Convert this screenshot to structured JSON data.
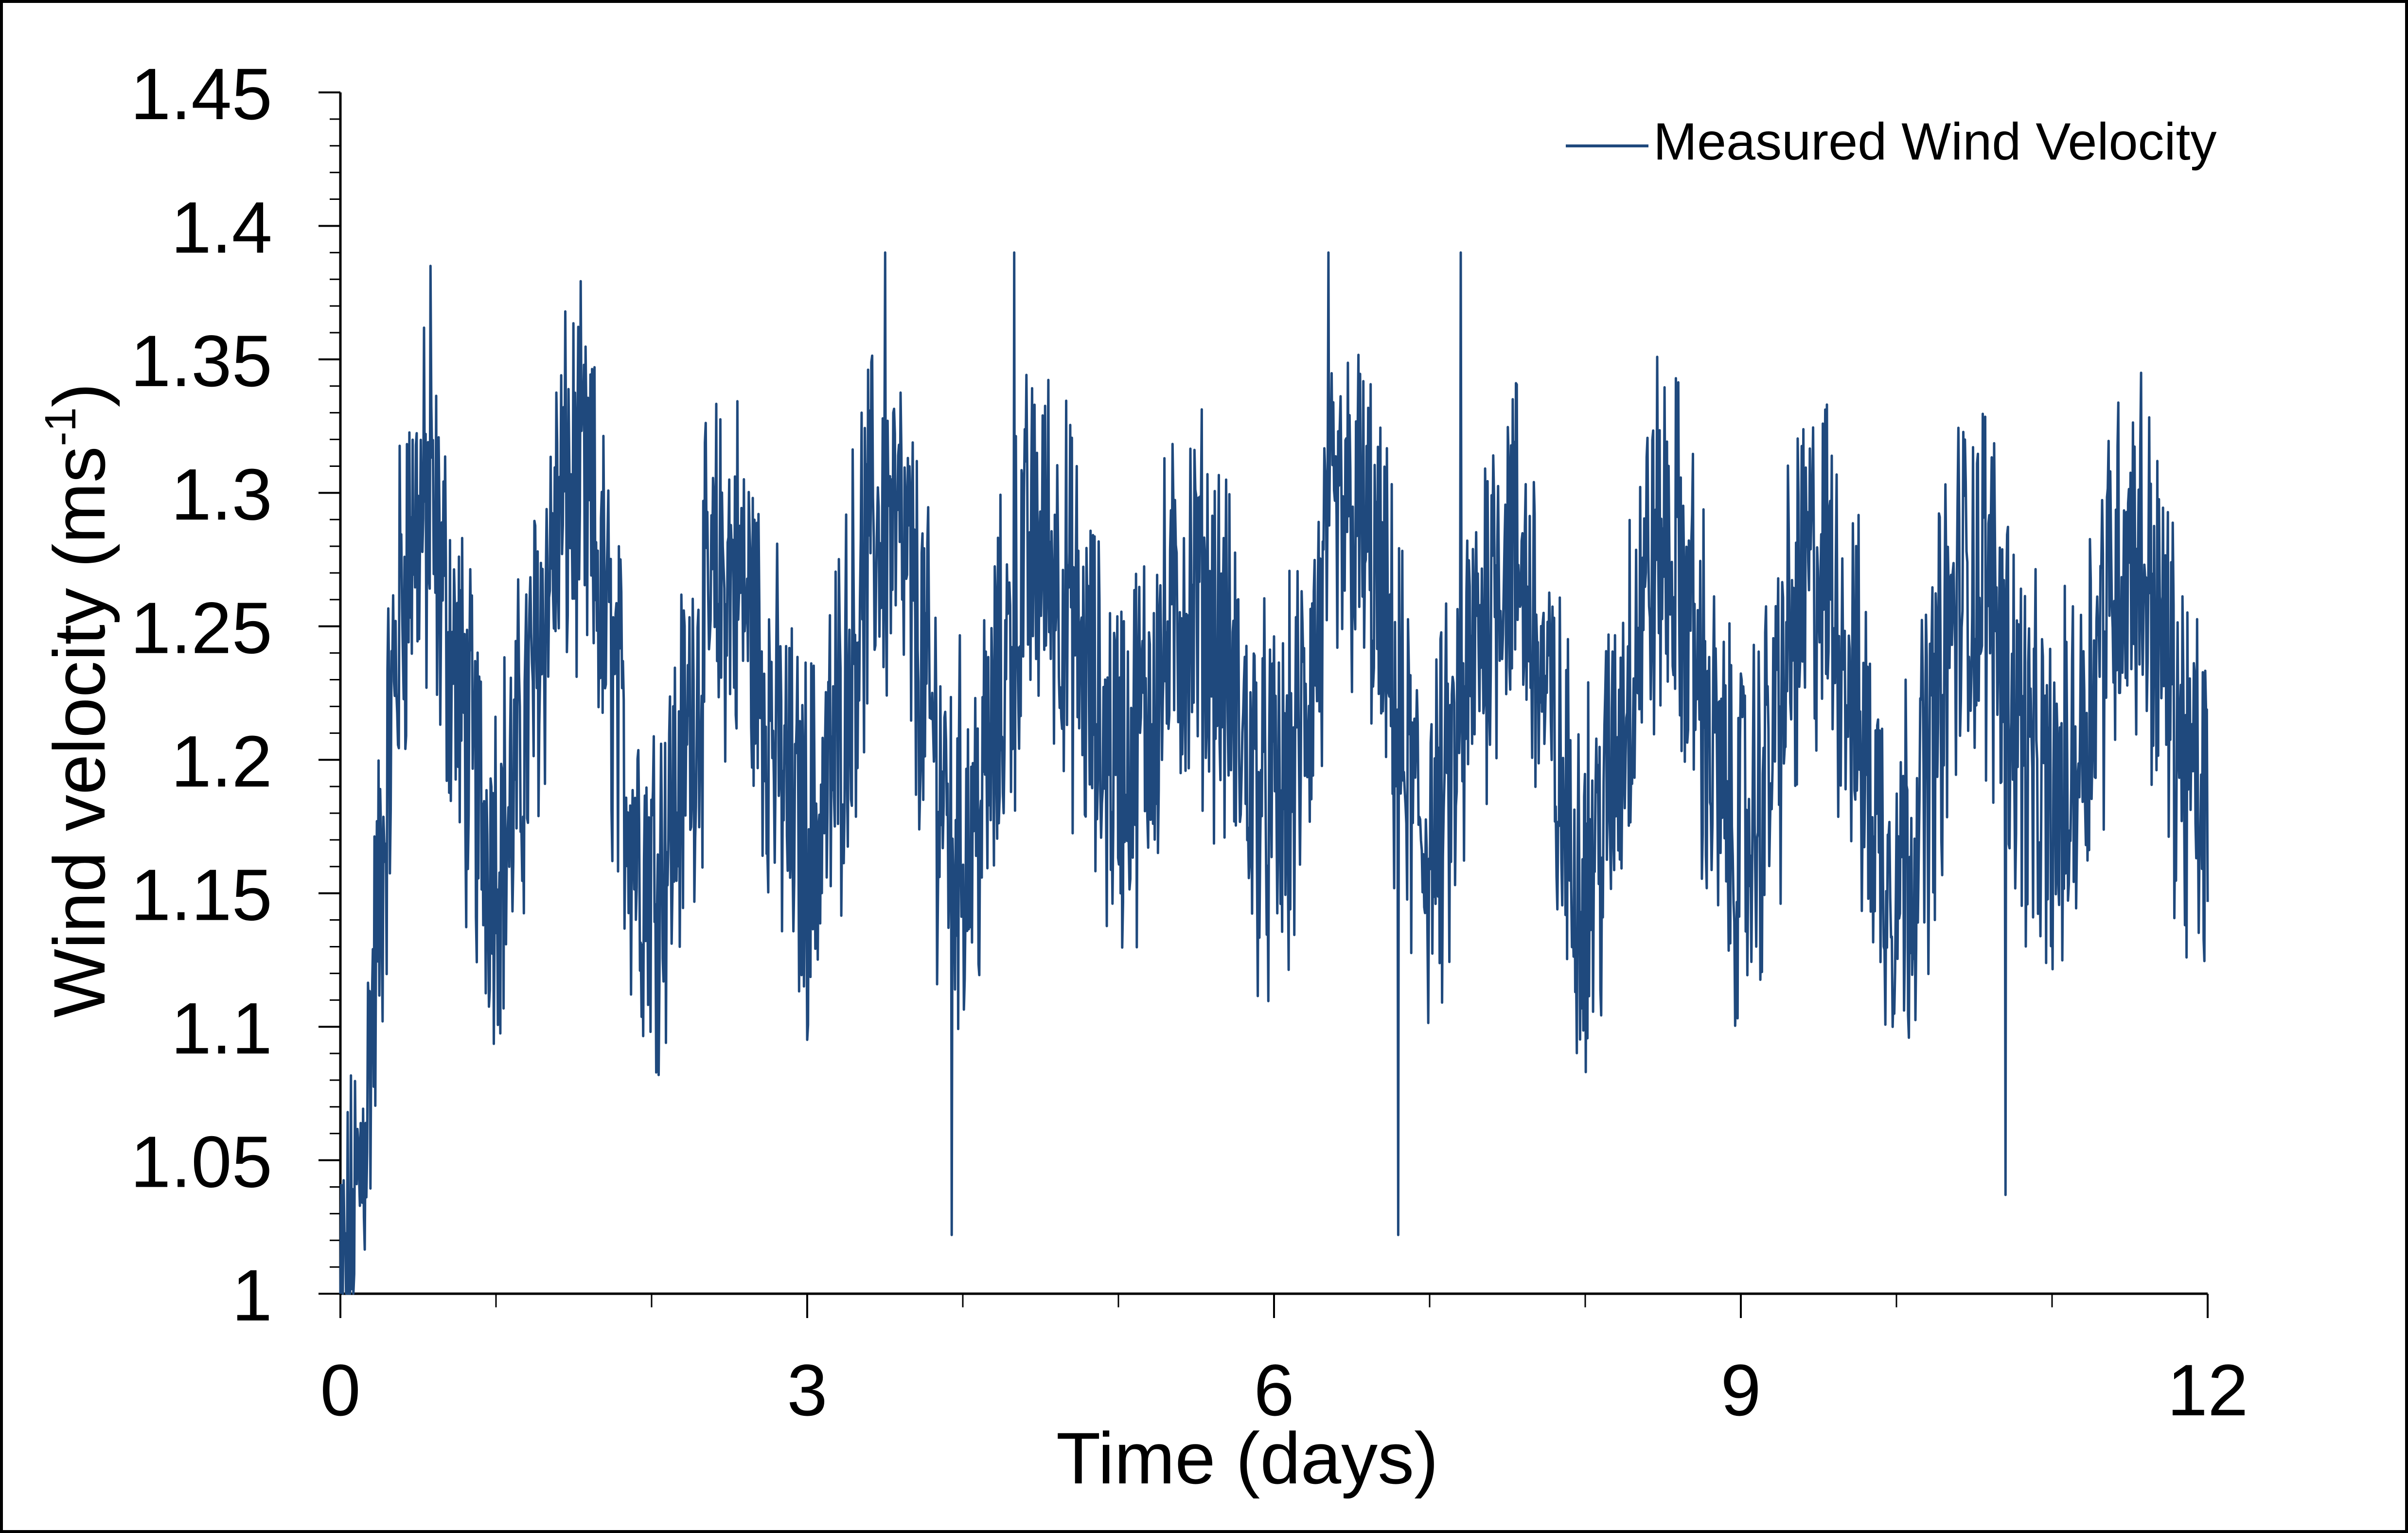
{
  "chart_data": {
    "type": "line",
    "xlabel": "Time (days)",
    "ylabel_main": "Wind velocity (ms",
    "ylabel_sup": "-1",
    "ylabel_close": ")",
    "xlim": [
      0,
      12
    ],
    "ylim": [
      1.0,
      1.45
    ],
    "x_ticks": [
      0,
      3,
      6,
      9,
      12
    ],
    "x_tick_labels": [
      "0",
      "3",
      "6",
      "9",
      "12"
    ],
    "x_minor_step": 1,
    "y_ticks": [
      1,
      1.05,
      1.1,
      1.15,
      1.2,
      1.25,
      1.3,
      1.35,
      1.4,
      1.45
    ],
    "y_tick_labels": [
      "1",
      "1.05",
      "1.1",
      "1.15",
      "1.2",
      "1.25",
      "1.3",
      "1.35",
      "1.4",
      "1.45"
    ],
    "y_minor_step": 0.01,
    "grid": false,
    "legend_position": "top-right",
    "series": [
      {
        "name": "Measured Wind Velocity",
        "color": "#1f497d",
        "x": [
          0,
          0.5,
          1,
          1.5,
          2,
          2.5,
          3,
          3.5,
          4,
          4.5,
          5,
          5.5,
          6,
          6.5,
          7,
          7.5,
          8,
          8.5,
          9,
          9.5,
          10,
          10.5,
          11,
          11.5,
          12
        ],
        "y": [
          1.0,
          1.29,
          1.17,
          1.3,
          1.16,
          1.27,
          1.17,
          1.29,
          1.17,
          1.28,
          1.2,
          1.26,
          1.18,
          1.29,
          1.17,
          1.28,
          1.16,
          1.28,
          1.17,
          1.27,
          1.16,
          1.27,
          1.18,
          1.28,
          1.18
        ],
        "marked_extremes": [
          {
            "x": 0.58,
            "y": 1.385
          },
          {
            "x": 3.5,
            "y": 1.39
          },
          {
            "x": 3.93,
            "y": 1.022
          },
          {
            "x": 4.33,
            "y": 1.39
          },
          {
            "x": 6.35,
            "y": 1.39
          },
          {
            "x": 6.8,
            "y": 1.022
          },
          {
            "x": 7.2,
            "y": 1.39
          },
          {
            "x": 10.7,
            "y": 1.037
          }
        ]
      }
    ]
  }
}
